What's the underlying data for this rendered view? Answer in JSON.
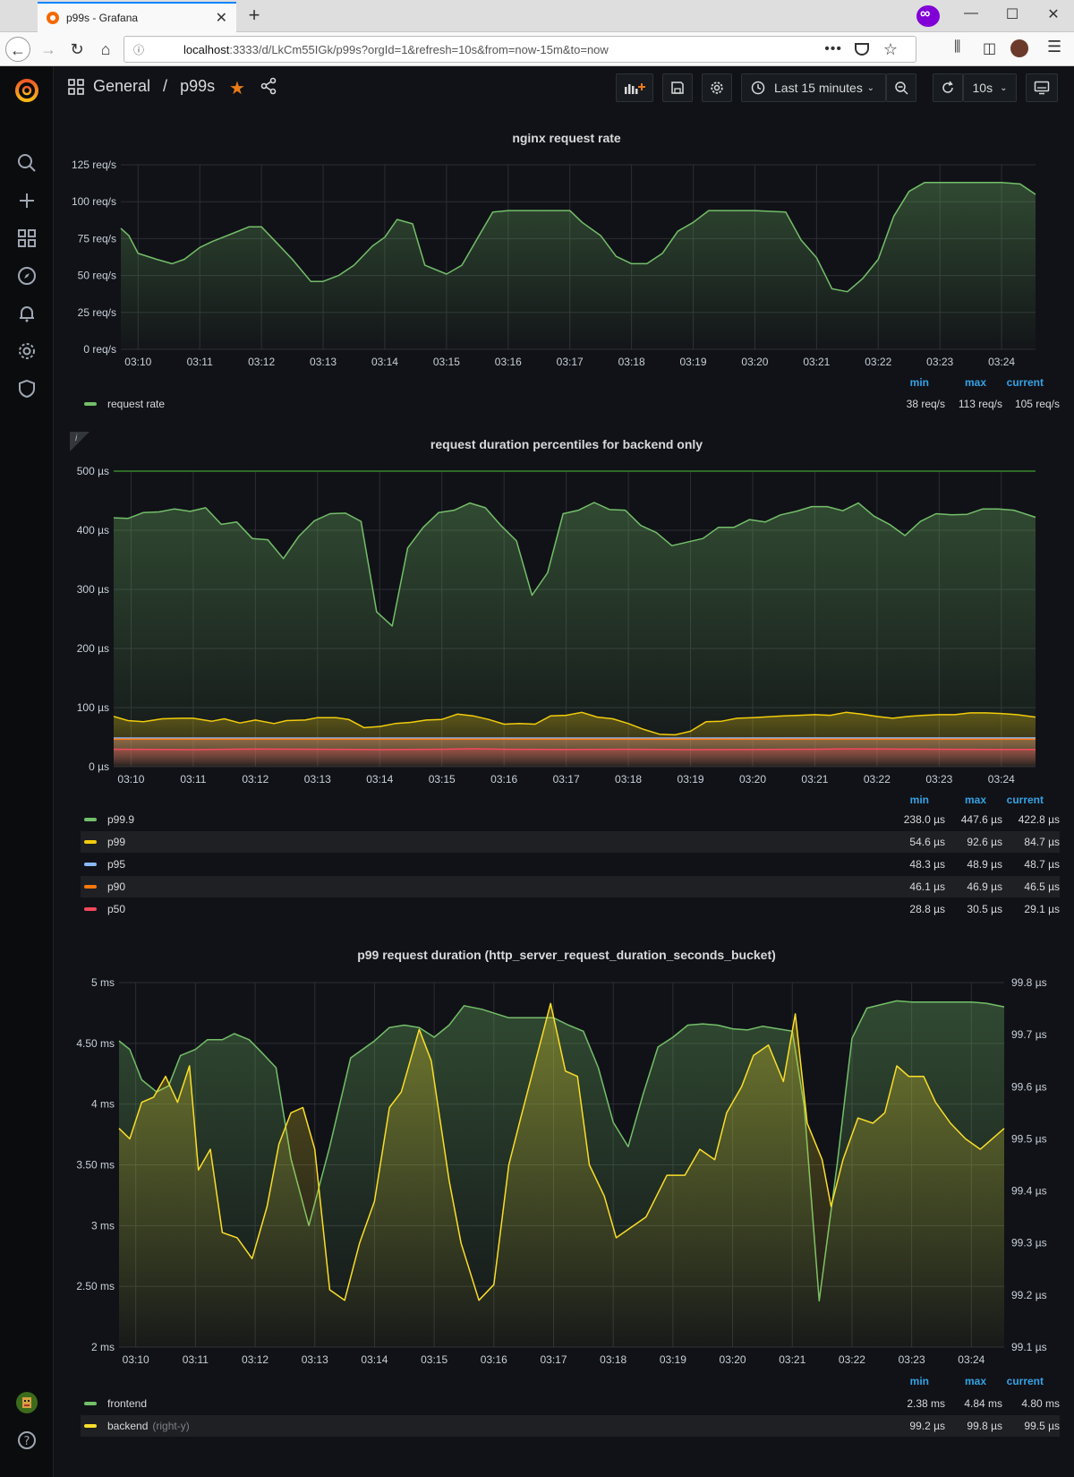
{
  "browser": {
    "tab_title": "p99s - Grafana",
    "url_host": "localhost",
    "url_rest": ":3333/d/LkCm55IGk/p99s?orgId=1&refresh=10s&from=now-15m&to=now"
  },
  "topbar": {
    "folder": "General",
    "separator": "/",
    "dashboard": "p99s",
    "time_range": "Last 15 minutes",
    "refresh": "10s"
  },
  "panels": {
    "rate": {
      "title": "nginx request rate",
      "legend_headers": [
        "min",
        "max",
        "current"
      ],
      "legend": [
        {
          "name": "request rate",
          "color": "#73bf69",
          "min": "38 req/s",
          "max": "113 req/s",
          "current": "105 req/s"
        }
      ]
    },
    "percentiles": {
      "title": "request duration percentiles for backend only",
      "info": "i",
      "legend_headers": [
        "min",
        "max",
        "current"
      ],
      "legend": [
        {
          "name": "p99.9",
          "color": "#73bf69",
          "min": "238.0 µs",
          "max": "447.6 µs",
          "current": "422.8 µs"
        },
        {
          "name": "p99",
          "color": "#f2cc0c",
          "min": "54.6 µs",
          "max": "92.6 µs",
          "current": "84.7 µs"
        },
        {
          "name": "p95",
          "color": "#8ab8ff",
          "min": "48.3 µs",
          "max": "48.9 µs",
          "current": "48.7 µs"
        },
        {
          "name": "p90",
          "color": "#ff780a",
          "min": "46.1 µs",
          "max": "46.9 µs",
          "current": "46.5 µs"
        },
        {
          "name": "p50",
          "color": "#f2495c",
          "min": "28.8 µs",
          "max": "30.5 µs",
          "current": "29.1 µs"
        }
      ]
    },
    "p99": {
      "title": "p99 request duration (http_server_request_duration_seconds_bucket)",
      "legend_headers": [
        "min",
        "max",
        "current"
      ],
      "legend": [
        {
          "name": "frontend",
          "suffix": "",
          "color": "#73bf69",
          "min": "2.38 ms",
          "max": "4.84 ms",
          "current": "4.80 ms"
        },
        {
          "name": "backend",
          "suffix": "(right-y)",
          "color": "#fade2a",
          "min": "99.2 µs",
          "max": "99.8 µs",
          "current": "99.5 µs"
        }
      ]
    }
  },
  "chart_data": [
    {
      "type": "area",
      "title": "nginx request rate",
      "x_ticks": [
        "03:10",
        "03:11",
        "03:12",
        "03:13",
        "03:14",
        "03:15",
        "03:16",
        "03:17",
        "03:18",
        "03:19",
        "03:20",
        "03:21",
        "03:22",
        "03:23",
        "03:24"
      ],
      "y_ticks": [
        "0 req/s",
        "25 req/s",
        "50 req/s",
        "75 req/s",
        "100 req/s",
        "125 req/s"
      ],
      "ylim": [
        0,
        125
      ],
      "xlim": [
        9.72,
        24.55
      ],
      "series": [
        {
          "name": "request rate",
          "color": "#73bf69",
          "x": [
            9.72,
            9.85,
            10.0,
            10.3,
            10.55,
            10.75,
            11.0,
            11.2,
            11.5,
            11.8,
            12.0,
            12.25,
            12.5,
            12.8,
            13.0,
            13.25,
            13.5,
            13.8,
            14.0,
            14.2,
            14.45,
            14.65,
            15.0,
            15.25,
            15.5,
            15.75,
            16.0,
            16.2,
            16.5,
            17.0,
            17.2,
            17.5,
            17.75,
            18.0,
            18.25,
            18.5,
            18.75,
            19.0,
            19.25,
            19.5,
            20.0,
            20.5,
            20.75,
            21.0,
            21.25,
            21.5,
            21.75,
            22.0,
            22.25,
            22.5,
            22.75,
            23.0,
            23.5,
            24.0,
            24.3,
            24.55
          ],
          "values": [
            82,
            77,
            65,
            61,
            58,
            61,
            69,
            73,
            78,
            83,
            83,
            72,
            61,
            46,
            46,
            50,
            57,
            70,
            76,
            88,
            85,
            57,
            51,
            57,
            75,
            93,
            94,
            94,
            94,
            94,
            86,
            77,
            63,
            58,
            58,
            65,
            80,
            86,
            94,
            94,
            94,
            93,
            74,
            62,
            41,
            39,
            48,
            61,
            90,
            107,
            113,
            113,
            113,
            113,
            112,
            105
          ]
        }
      ]
    },
    {
      "type": "area",
      "title": "request duration percentiles for backend only",
      "x_ticks": [
        "03:10",
        "03:11",
        "03:12",
        "03:13",
        "03:14",
        "03:15",
        "03:16",
        "03:17",
        "03:18",
        "03:19",
        "03:20",
        "03:21",
        "03:22",
        "03:23",
        "03:24"
      ],
      "y_ticks": [
        "0 µs",
        "100 µs",
        "200 µs",
        "300 µs",
        "400 µs",
        "500 µs"
      ],
      "ylim": [
        0,
        500
      ],
      "xlim": [
        9.72,
        24.55
      ],
      "threshold": 500,
      "series": [
        {
          "name": "p99.9",
          "color": "#73bf69",
          "x": [
            9.72,
            9.95,
            10.2,
            10.45,
            10.7,
            10.95,
            11.2,
            11.45,
            11.7,
            11.95,
            12.2,
            12.45,
            12.7,
            12.95,
            13.2,
            13.45,
            13.7,
            13.95,
            14.2,
            14.45,
            14.7,
            14.95,
            15.2,
            15.45,
            15.7,
            15.95,
            16.2,
            16.45,
            16.7,
            16.95,
            17.2,
            17.45,
            17.7,
            17.95,
            18.2,
            18.45,
            18.7,
            18.95,
            19.2,
            19.45,
            19.7,
            19.95,
            20.2,
            20.45,
            20.7,
            20.95,
            21.2,
            21.45,
            21.7,
            21.95,
            22.2,
            22.45,
            22.7,
            22.95,
            23.2,
            23.45,
            23.7,
            23.95,
            24.2,
            24.55
          ],
          "values": [
            421,
            420,
            430,
            431,
            436,
            432,
            438,
            410,
            414,
            386,
            384,
            352,
            390,
            416,
            428,
            429,
            415,
            262,
            238,
            370,
            405,
            430,
            434,
            446,
            438,
            408,
            382,
            290,
            328,
            428,
            434,
            447,
            435,
            434,
            408,
            396,
            374,
            380,
            386,
            405,
            405,
            418,
            414,
            426,
            432,
            440,
            440,
            433,
            446,
            424,
            410,
            391,
            415,
            428,
            426,
            427,
            436,
            436,
            434,
            422
          ]
        },
        {
          "name": "p99",
          "color": "#f2cc0c",
          "x": [
            9.72,
            9.95,
            10.2,
            10.5,
            10.8,
            11.0,
            11.3,
            11.5,
            11.75,
            12.0,
            12.3,
            12.5,
            12.8,
            13.0,
            13.3,
            13.5,
            13.75,
            14.0,
            14.25,
            14.5,
            14.75,
            15.0,
            15.25,
            15.5,
            15.75,
            16.0,
            16.25,
            16.5,
            16.75,
            17.0,
            17.25,
            17.5,
            17.75,
            18.0,
            18.25,
            18.5,
            18.75,
            19.0,
            19.25,
            19.5,
            19.75,
            20.0,
            20.5,
            20.75,
            21.0,
            21.25,
            21.5,
            21.75,
            22.0,
            22.25,
            22.5,
            22.75,
            23.0,
            23.25,
            23.5,
            23.75,
            24.0,
            24.25,
            24.55
          ],
          "values": [
            85,
            78,
            76,
            81,
            82,
            82,
            77,
            81,
            74,
            79,
            73,
            78,
            79,
            83,
            83,
            80,
            66,
            68,
            73,
            75,
            79,
            80,
            89,
            86,
            80,
            72,
            73,
            72,
            86,
            87,
            92,
            84,
            81,
            73,
            63,
            55,
            54,
            60,
            76,
            77,
            82,
            83,
            86,
            87,
            88,
            87,
            92,
            89,
            85,
            82,
            85,
            87,
            88,
            88,
            91,
            91,
            90,
            88,
            84
          ]
        },
        {
          "name": "p95",
          "color": "#8ab8ff",
          "x": [
            9.72,
            24.55
          ],
          "values": [
            48.5,
            48.7
          ]
        },
        {
          "name": "p90",
          "color": "#ff780a",
          "x": [
            9.72,
            24.55
          ],
          "values": [
            46.5,
            46.5
          ]
        },
        {
          "name": "p50",
          "color": "#f2495c",
          "x": [
            9.72,
            11.0,
            12.0,
            13.0,
            14.0,
            15.0,
            15.5,
            16.0,
            17.0,
            18.0,
            19.0,
            20.0,
            21.0,
            21.5,
            22.0,
            23.0,
            24.0,
            24.55
          ],
          "values": [
            29.5,
            29,
            30,
            29.5,
            29,
            29.5,
            30.5,
            29.5,
            29.2,
            29.5,
            29,
            29.2,
            29.5,
            30.3,
            30.2,
            29.5,
            29.2,
            29.1
          ]
        }
      ]
    },
    {
      "type": "area",
      "title": "p99 request duration (http_server_request_duration_seconds_bucket)",
      "x_ticks": [
        "03:10",
        "03:11",
        "03:12",
        "03:13",
        "03:14",
        "03:15",
        "03:16",
        "03:17",
        "03:18",
        "03:19",
        "03:20",
        "03:21",
        "03:22",
        "03:23",
        "03:24"
      ],
      "y_ticks": [
        "2 ms",
        "2.50 ms",
        "3 ms",
        "3.50 ms",
        "4 ms",
        "4.50 ms",
        "5 ms"
      ],
      "y2_ticks": [
        "99.1 µs",
        "99.2 µs",
        "99.3 µs",
        "99.4 µs",
        "99.5 µs",
        "99.6 µs",
        "99.7 µs",
        "99.8 µs"
      ],
      "ylim": [
        2,
        5
      ],
      "y2lim": [
        99.1,
        99.8
      ],
      "xlim": [
        9.72,
        24.55
      ],
      "series": [
        {
          "name": "frontend",
          "axis": "left",
          "color": "#73bf69",
          "x": [
            9.72,
            9.9,
            10.1,
            10.35,
            10.55,
            10.75,
            11.0,
            11.2,
            11.45,
            11.65,
            11.9,
            12.1,
            12.35,
            12.6,
            12.9,
            13.25,
            13.6,
            14.0,
            14.25,
            14.5,
            14.75,
            15.0,
            15.25,
            15.5,
            15.8,
            16.25,
            16.75,
            17.0,
            17.25,
            17.5,
            17.75,
            18.0,
            18.25,
            18.5,
            18.75,
            19.0,
            19.25,
            19.5,
            19.75,
            20.0,
            20.25,
            20.5,
            21.0,
            21.2,
            21.45,
            21.75,
            22.0,
            22.25,
            22.5,
            22.75,
            23.0,
            23.5,
            24.0,
            24.25,
            24.55
          ],
          "values": [
            4.52,
            4.45,
            4.2,
            4.1,
            4.15,
            4.4,
            4.45,
            4.53,
            4.53,
            4.58,
            4.53,
            4.43,
            4.3,
            3.55,
            3.0,
            3.65,
            4.38,
            4.52,
            4.63,
            4.65,
            4.63,
            4.55,
            4.65,
            4.81,
            4.78,
            4.71,
            4.71,
            4.71,
            4.65,
            4.6,
            4.3,
            3.85,
            3.65,
            4.08,
            4.47,
            4.55,
            4.65,
            4.66,
            4.65,
            4.62,
            4.61,
            4.64,
            4.6,
            3.98,
            2.38,
            3.5,
            4.54,
            4.79,
            4.82,
            4.85,
            4.84,
            4.84,
            4.84,
            4.83,
            4.8
          ]
        },
        {
          "name": "backend",
          "axis": "right",
          "color": "#fade2a",
          "x": [
            9.72,
            9.9,
            10.1,
            10.3,
            10.5,
            10.7,
            10.9,
            11.05,
            11.25,
            11.45,
            11.7,
            11.95,
            12.2,
            12.4,
            12.6,
            12.8,
            13.0,
            13.25,
            13.5,
            13.75,
            14.0,
            14.25,
            14.45,
            14.75,
            14.95,
            15.25,
            15.45,
            15.75,
            16.0,
            16.25,
            16.45,
            16.7,
            16.95,
            17.2,
            17.4,
            17.6,
            17.85,
            18.05,
            18.3,
            18.55,
            18.9,
            19.2,
            19.45,
            19.7,
            19.9,
            20.15,
            20.35,
            20.6,
            20.85,
            21.05,
            21.25,
            21.5,
            21.65,
            21.85,
            22.1,
            22.35,
            22.55,
            22.75,
            22.95,
            23.2,
            23.4,
            23.65,
            23.9,
            24.15,
            24.35,
            24.55
          ],
          "values": [
            99.52,
            99.5,
            99.57,
            99.58,
            99.62,
            99.57,
            99.64,
            99.44,
            99.48,
            99.32,
            99.31,
            99.27,
            99.37,
            99.49,
            99.55,
            99.56,
            99.48,
            99.21,
            99.19,
            99.3,
            99.38,
            99.56,
            99.59,
            99.71,
            99.65,
            99.42,
            99.3,
            99.19,
            99.22,
            99.45,
            99.54,
            99.65,
            99.76,
            99.63,
            99.62,
            99.45,
            99.39,
            99.31,
            99.33,
            99.35,
            99.43,
            99.43,
            99.48,
            99.46,
            99.55,
            99.6,
            99.66,
            99.68,
            99.61,
            99.74,
            99.53,
            99.46,
            99.37,
            99.46,
            99.54,
            99.53,
            99.55,
            99.64,
            99.62,
            99.62,
            99.57,
            99.53,
            99.5,
            99.48,
            99.5,
            99.52
          ]
        }
      ]
    }
  ]
}
